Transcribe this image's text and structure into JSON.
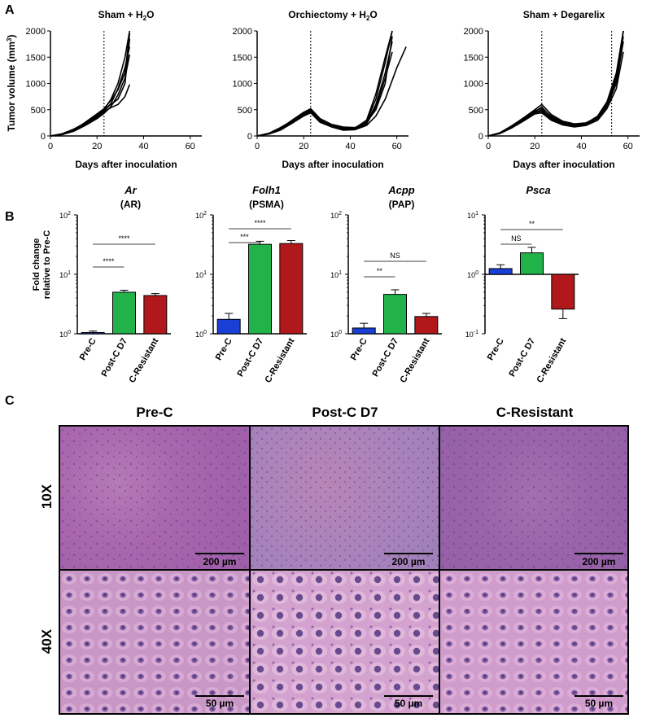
{
  "panel_labels": {
    "a": "A",
    "b": "B",
    "c": "C"
  },
  "panel_a": {
    "titles": [
      "Sham + H",
      "Orchiectomy + H",
      "Sham + Degarelix"
    ],
    "title_suffix_sub": "2",
    "title_suffix_after": "O",
    "ylabel": "Tumor volume (mm",
    "ylabel_sup": "3",
    "ylabel_close": ")",
    "xlabel": "Days after inoculation",
    "yticks": [
      "0",
      "500",
      "1000",
      "1500",
      "2000"
    ],
    "xticks": [
      "0",
      "20",
      "40",
      "60"
    ]
  },
  "panel_b": {
    "ylabel_line1": "Fold change",
    "ylabel_line2": "relative to Pre-C",
    "genes": [
      {
        "gene": "Ar",
        "protein": "(AR)",
        "ticks": [
          "10",
          "10",
          "10"
        ],
        "exps": [
          "0",
          "1",
          "2"
        ],
        "sig": [
          "****",
          "****"
        ]
      },
      {
        "gene": "Folh1",
        "protein": "(PSMA)",
        "ticks": [
          "10",
          "10",
          "10"
        ],
        "exps": [
          "0",
          "1",
          "2"
        ],
        "sig": [
          "***",
          "****"
        ]
      },
      {
        "gene": "Acpp",
        "protein": "(PAP)",
        "ticks": [
          "10",
          "10",
          "10"
        ],
        "exps": [
          "0",
          "1",
          "2"
        ],
        "sig": [
          "**",
          "NS"
        ]
      },
      {
        "gene": "Psca",
        "protein": "",
        "ticks": [
          "10",
          "10",
          "10"
        ],
        "exps": [
          "-1",
          "0",
          "1"
        ],
        "sig": [
          "NS",
          "**"
        ]
      }
    ],
    "categories": [
      "Pre-C",
      "Post-C D7",
      "C-Resistant"
    ],
    "colors": [
      "#1a3fd6",
      "#22b24a",
      "#b0181c"
    ]
  },
  "panel_c": {
    "columns": [
      "Pre-C",
      "Post-C D7",
      "C-Resistant"
    ],
    "rows": [
      "10X",
      "40X"
    ],
    "scale_10x": "200 µm",
    "scale_40x": "50 µm"
  },
  "chart_data": [
    {
      "type": "line",
      "title": "Sham + H2O",
      "xlabel": "Days after inoculation",
      "ylabel": "Tumor volume (mm3)",
      "xlim": [
        0,
        65
      ],
      "ylim": [
        0,
        2000
      ],
      "vline_x": 23,
      "series": [
        {
          "x": [
            0,
            5,
            10,
            15,
            20,
            23,
            26,
            29,
            32,
            34
          ],
          "y": [
            0,
            40,
            120,
            240,
            380,
            500,
            700,
            1000,
            1500,
            2000
          ]
        },
        {
          "x": [
            0,
            5,
            10,
            15,
            20,
            23,
            26,
            29,
            32,
            34
          ],
          "y": [
            0,
            30,
            100,
            220,
            360,
            470,
            620,
            900,
            1300,
            1700
          ]
        },
        {
          "x": [
            0,
            5,
            10,
            15,
            20,
            23,
            26,
            29,
            32,
            34
          ],
          "y": [
            0,
            35,
            110,
            260,
            420,
            520,
            680,
            880,
            1200,
            1950
          ]
        },
        {
          "x": [
            0,
            5,
            10,
            15,
            20,
            23,
            26,
            29,
            32,
            34
          ],
          "y": [
            0,
            25,
            90,
            200,
            330,
            430,
            560,
            780,
            1100,
            1550
          ]
        },
        {
          "x": [
            0,
            5,
            10,
            15,
            20,
            23,
            26,
            29,
            32,
            34
          ],
          "y": [
            0,
            30,
            95,
            210,
            350,
            460,
            540,
            600,
            750,
            980
          ]
        },
        {
          "x": [
            0,
            5,
            10,
            15,
            20,
            23,
            26,
            29,
            32,
            34
          ],
          "y": [
            0,
            40,
            130,
            250,
            390,
            510,
            600,
            700,
            1000,
            1850
          ]
        }
      ]
    },
    {
      "type": "line",
      "title": "Orchiectomy + H2O",
      "xlabel": "Days after inoculation",
      "ylabel": "Tumor volume (mm3)",
      "xlim": [
        0,
        65
      ],
      "ylim": [
        0,
        2000
      ],
      "vline_x": 23,
      "series": [
        {
          "x": [
            0,
            5,
            10,
            15,
            20,
            23,
            27,
            32,
            37,
            42,
            47,
            51,
            55,
            58
          ],
          "y": [
            0,
            50,
            150,
            280,
            420,
            500,
            300,
            200,
            150,
            150,
            300,
            800,
            1500,
            2000
          ]
        },
        {
          "x": [
            0,
            5,
            10,
            15,
            20,
            23,
            27,
            32,
            37,
            42,
            47,
            51,
            55,
            58
          ],
          "y": [
            0,
            40,
            130,
            260,
            400,
            470,
            280,
            180,
            120,
            140,
            250,
            600,
            1200,
            1800
          ]
        },
        {
          "x": [
            0,
            5,
            10,
            15,
            20,
            23,
            27,
            32,
            37,
            42,
            47,
            51,
            55,
            58
          ],
          "y": [
            0,
            45,
            140,
            300,
            450,
            520,
            330,
            220,
            170,
            160,
            260,
            500,
            1000,
            1900
          ]
        },
        {
          "x": [
            0,
            5,
            10,
            15,
            20,
            23,
            27,
            32,
            37,
            42,
            47,
            51,
            55,
            60,
            64
          ],
          "y": [
            0,
            35,
            110,
            240,
            380,
            440,
            260,
            170,
            110,
            120,
            200,
            380,
            700,
            1300,
            1700
          ]
        },
        {
          "x": [
            0,
            5,
            10,
            15,
            20,
            23,
            27,
            32,
            37,
            42,
            47,
            51,
            55,
            58
          ],
          "y": [
            0,
            50,
            160,
            290,
            430,
            480,
            310,
            210,
            140,
            150,
            280,
            700,
            1400,
            2000
          ]
        },
        {
          "x": [
            0,
            5,
            10,
            15,
            20,
            23,
            27,
            32,
            37,
            42,
            47,
            51,
            55,
            58
          ],
          "y": [
            0,
            40,
            120,
            250,
            390,
            450,
            290,
            190,
            130,
            130,
            230,
            550,
            1100,
            1600
          ]
        }
      ]
    },
    {
      "type": "line",
      "title": "Sham + Degarelix",
      "xlabel": "Days after inoculation",
      "ylabel": "Tumor volume (mm3)",
      "xlim": [
        0,
        65
      ],
      "ylim": [
        0,
        2000
      ],
      "vline_x": [
        23,
        53
      ],
      "series": [
        {
          "x": [
            0,
            5,
            10,
            15,
            20,
            23,
            27,
            32,
            37,
            42,
            47,
            51,
            55,
            58
          ],
          "y": [
            0,
            60,
            180,
            330,
            480,
            520,
            380,
            260,
            220,
            240,
            380,
            650,
            1200,
            2000
          ]
        },
        {
          "x": [
            0,
            5,
            10,
            15,
            20,
            23,
            27,
            32,
            37,
            42,
            47,
            51,
            55,
            58
          ],
          "y": [
            0,
            50,
            160,
            300,
            440,
            470,
            320,
            230,
            190,
            210,
            330,
            560,
            1000,
            1800
          ]
        },
        {
          "x": [
            0,
            5,
            10,
            15,
            20,
            23,
            27,
            32,
            37,
            42,
            47,
            51,
            55,
            58
          ],
          "y": [
            0,
            55,
            170,
            320,
            460,
            550,
            360,
            250,
            210,
            230,
            350,
            600,
            1100,
            2000
          ]
        },
        {
          "x": [
            0,
            5,
            10,
            15,
            20,
            23,
            27,
            32,
            37,
            42,
            47,
            51,
            55,
            58
          ],
          "y": [
            0,
            45,
            150,
            280,
            420,
            440,
            300,
            210,
            170,
            200,
            300,
            520,
            900,
            1600
          ]
        },
        {
          "x": [
            0,
            5,
            10,
            15,
            20,
            23,
            27,
            32,
            37,
            42,
            47,
            51,
            55,
            58
          ],
          "y": [
            0,
            50,
            160,
            310,
            450,
            490,
            340,
            240,
            200,
            220,
            340,
            580,
            1050,
            1900
          ]
        },
        {
          "x": [
            0,
            5,
            10,
            15,
            20,
            23,
            27,
            32,
            37,
            42,
            47,
            51,
            55,
            58
          ],
          "y": [
            0,
            60,
            190,
            340,
            500,
            600,
            410,
            280,
            230,
            250,
            360,
            620,
            1150,
            2000
          ]
        }
      ]
    },
    {
      "type": "bar",
      "title": "Ar (AR)",
      "scale": "log",
      "categories": [
        "Pre-C",
        "Post-C D7",
        "C-Resistant"
      ],
      "values": [
        1.05,
        5.0,
        4.4
      ],
      "errors": [
        0.06,
        0.4,
        0.35
      ],
      "ylim": [
        1,
        100
      ]
    },
    {
      "type": "bar",
      "title": "Folh1 (PSMA)",
      "scale": "log",
      "categories": [
        "Pre-C",
        "Post-C D7",
        "C-Resistant"
      ],
      "values": [
        1.75,
        32,
        33
      ],
      "errors": [
        0.45,
        4,
        4
      ],
      "ylim": [
        1,
        100
      ]
    },
    {
      "type": "bar",
      "title": "Acpp (PAP)",
      "scale": "log",
      "categories": [
        "Pre-C",
        "Post-C D7",
        "C-Resistant"
      ],
      "values": [
        1.25,
        4.6,
        1.95
      ],
      "errors": [
        0.25,
        0.9,
        0.25
      ],
      "ylim": [
        1,
        100
      ]
    },
    {
      "type": "bar",
      "title": "Psca",
      "scale": "log",
      "categories": [
        "Pre-C",
        "Post-C D7",
        "C-Resistant"
      ],
      "values": [
        1.25,
        2.3,
        0.26
      ],
      "errors": [
        0.2,
        0.55,
        0.08
      ],
      "ylim": [
        0.1,
        10
      ]
    }
  ]
}
